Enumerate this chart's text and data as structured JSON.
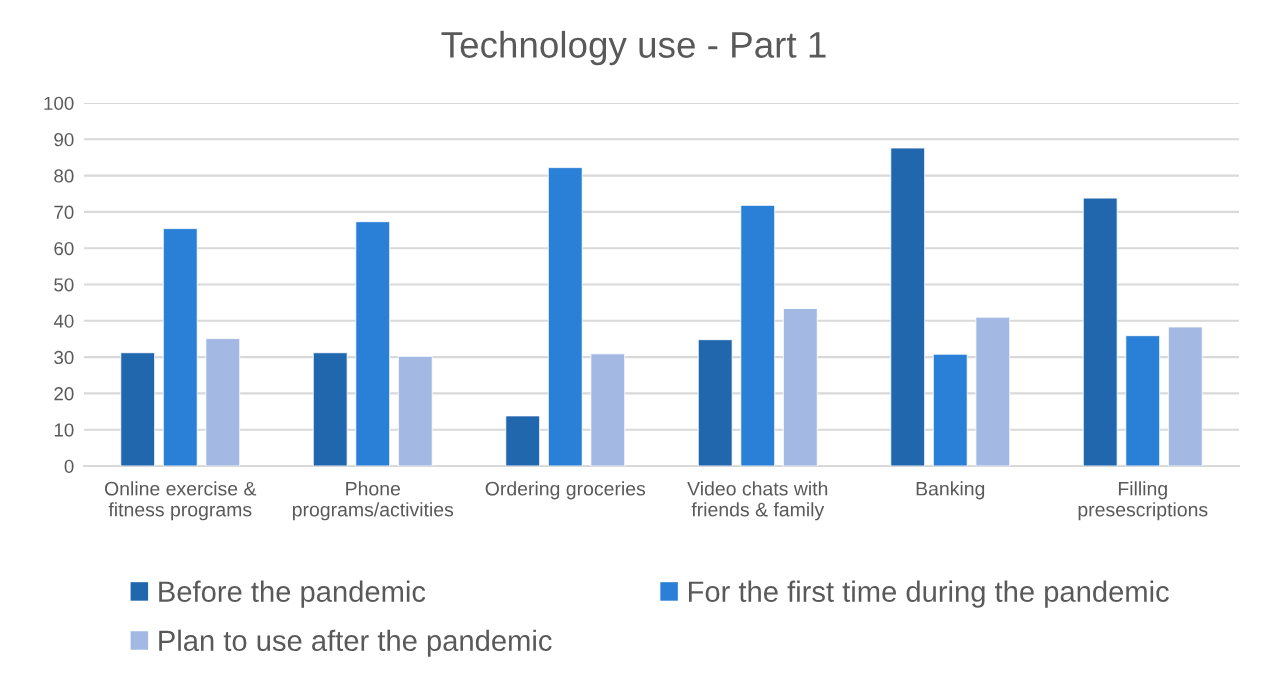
{
  "chart_data": {
    "type": "bar",
    "title": "Technology use - Part 1",
    "categories": [
      "Online exercise &\nfitness programs",
      "Phone\nprograms/activities",
      "Ordering groceries",
      "Video chats with\nfriends & family",
      "Banking",
      "Filling\npresescriptions"
    ],
    "series": [
      {
        "name": "Before the pandemic",
        "color": "#2167ae",
        "values": [
          31.2,
          31.2,
          13.8,
          34.8,
          87.6,
          73.8
        ]
      },
      {
        "name": "For the first time during the pandemic",
        "color": "#2a7fd6",
        "values": [
          65.4,
          67.3,
          82.2,
          71.8,
          30.8,
          35.9
        ]
      },
      {
        "name": "Plan to use after the pandemic",
        "color": "#a3b8e3",
        "values": [
          35.1,
          30.2,
          30.9,
          43.4,
          41.0,
          38.3
        ]
      }
    ],
    "ylim": [
      0,
      100
    ],
    "yticks": [
      0,
      10,
      20,
      30,
      40,
      50,
      60,
      70,
      80,
      90,
      100
    ],
    "grid": "y",
    "legend": "bottom"
  }
}
